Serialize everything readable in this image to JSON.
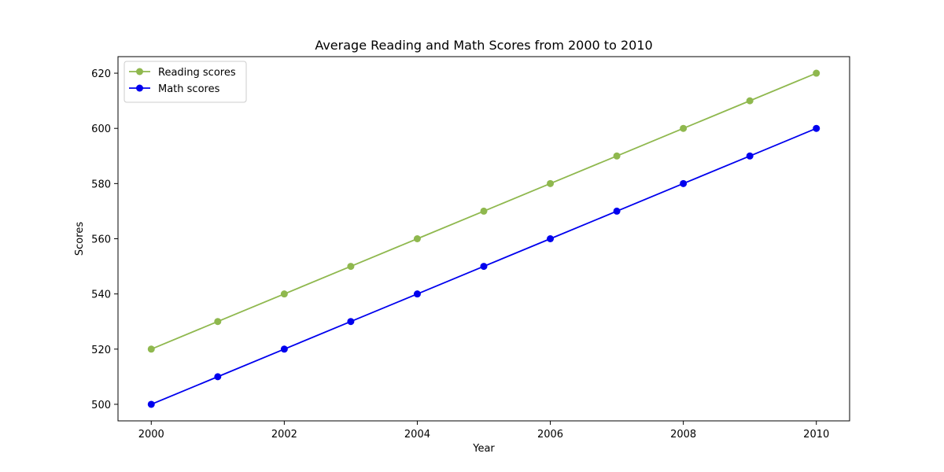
{
  "chart_data": {
    "type": "line",
    "title": "Average Reading and Math Scores from 2000 to 2010",
    "xlabel": "Year",
    "ylabel": "Scores",
    "x": [
      2000,
      2001,
      2002,
      2003,
      2004,
      2005,
      2006,
      2007,
      2008,
      2009,
      2010
    ],
    "xlim": [
      1999.5,
      2010.5
    ],
    "ylim": [
      494,
      626
    ],
    "xticks": [
      2000,
      2002,
      2004,
      2006,
      2008,
      2010
    ],
    "yticks": [
      500,
      520,
      540,
      560,
      580,
      600,
      620
    ],
    "grid": false,
    "legend_position": "top-left",
    "series": [
      {
        "name": "Reading scores",
        "color": "#8fb84e",
        "marker": "circle",
        "values": [
          520,
          530,
          540,
          550,
          560,
          570,
          580,
          590,
          600,
          610,
          620
        ]
      },
      {
        "name": "Math scores",
        "color": "#0000ee",
        "marker": "circle",
        "values": [
          500,
          510,
          520,
          530,
          540,
          550,
          560,
          570,
          580,
          590,
          600
        ]
      }
    ]
  }
}
